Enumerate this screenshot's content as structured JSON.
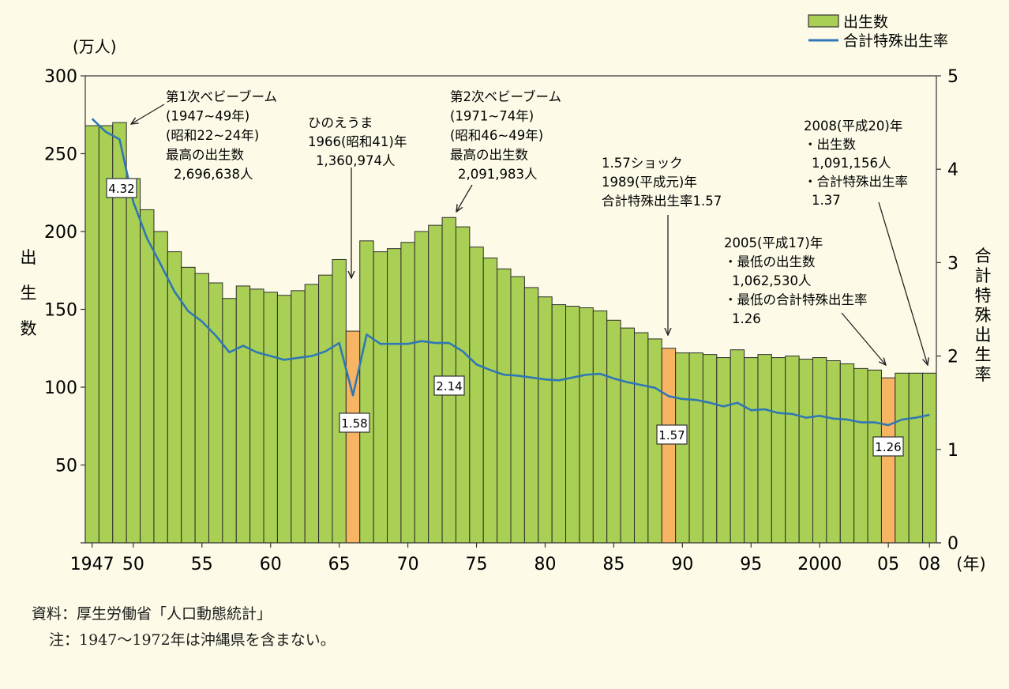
{
  "chart_data": {
    "type": "bar",
    "title": "",
    "xlabel": "(年)",
    "ylabel_left": [
      "出",
      "生",
      "数"
    ],
    "ylabel_left_unit": "(万人)",
    "ylabel_right": [
      "合",
      "計",
      "特",
      "殊",
      "出",
      "生",
      "率"
    ],
    "ylim_left": [
      0,
      300
    ],
    "ylim_right": [
      0,
      5
    ],
    "yticks_left": [
      50,
      100,
      150,
      200,
      250,
      300
    ],
    "yticks_right": [
      0,
      1,
      2,
      3,
      4,
      5
    ],
    "xtick_labels": [
      {
        "year": 1947,
        "label": "1947"
      },
      {
        "year": 1950,
        "label": "50"
      },
      {
        "year": 1955,
        "label": "55"
      },
      {
        "year": 1960,
        "label": "60"
      },
      {
        "year": 1965,
        "label": "65"
      },
      {
        "year": 1970,
        "label": "70"
      },
      {
        "year": 1975,
        "label": "75"
      },
      {
        "year": 1980,
        "label": "80"
      },
      {
        "year": 1985,
        "label": "85"
      },
      {
        "year": 1990,
        "label": "90"
      },
      {
        "year": 1995,
        "label": "95"
      },
      {
        "year": 2000,
        "label": "2000"
      },
      {
        "year": 2005,
        "label": "05"
      },
      {
        "year": 2008,
        "label": "08"
      }
    ],
    "legend": {
      "position": "top-right",
      "bar_label": "出生数",
      "line_label": "合計特殊出生率"
    },
    "years": [
      1947,
      1948,
      1949,
      1950,
      1951,
      1952,
      1953,
      1954,
      1955,
      1956,
      1957,
      1958,
      1959,
      1960,
      1961,
      1962,
      1963,
      1964,
      1965,
      1966,
      1967,
      1968,
      1969,
      1970,
      1971,
      1972,
      1973,
      1974,
      1975,
      1976,
      1977,
      1978,
      1979,
      1980,
      1981,
      1982,
      1983,
      1984,
      1985,
      1986,
      1987,
      1988,
      1989,
      1990,
      1991,
      1992,
      1993,
      1994,
      1995,
      1996,
      1997,
      1998,
      1999,
      2000,
      2001,
      2002,
      2003,
      2004,
      2005,
      2006,
      2007,
      2008
    ],
    "series": [
      {
        "name": "出生数",
        "axis": "left",
        "values": [
          268,
          268,
          270,
          234,
          214,
          200,
          187,
          177,
          173,
          167,
          157,
          165,
          163,
          161,
          159,
          162,
          166,
          172,
          182,
          136,
          194,
          187,
          189,
          193,
          200,
          204,
          209,
          203,
          190,
          183,
          176,
          171,
          164,
          158,
          153,
          152,
          151,
          149,
          143,
          138,
          135,
          131,
          125,
          122,
          122,
          121,
          119,
          124,
          119,
          121,
          119,
          120,
          118,
          119,
          117,
          115,
          112,
          111,
          106,
          109,
          109,
          109
        ]
      },
      {
        "name": "合計特殊出生率",
        "axis": "right",
        "values": [
          4.54,
          4.4,
          4.32,
          3.65,
          3.26,
          2.98,
          2.69,
          2.48,
          2.37,
          2.22,
          2.04,
          2.11,
          2.04,
          2.0,
          1.96,
          1.98,
          2.0,
          2.05,
          2.14,
          1.58,
          2.23,
          2.13,
          2.13,
          2.13,
          2.16,
          2.14,
          2.14,
          2.05,
          1.91,
          1.85,
          1.8,
          1.79,
          1.77,
          1.75,
          1.74,
          1.77,
          1.8,
          1.81,
          1.76,
          1.72,
          1.69,
          1.66,
          1.57,
          1.54,
          1.53,
          1.5,
          1.46,
          1.5,
          1.42,
          1.43,
          1.39,
          1.38,
          1.34,
          1.36,
          1.33,
          1.32,
          1.29,
          1.29,
          1.26,
          1.32,
          1.34,
          1.37
        ]
      }
    ],
    "highlight_years": [
      1966,
      1989,
      2005
    ],
    "value_labels": [
      {
        "year": 1949,
        "text": "4.32"
      },
      {
        "year": 1966,
        "text": "1.58"
      },
      {
        "year": 1973,
        "text": "2.14"
      },
      {
        "year": 1989,
        "text": "1.57"
      },
      {
        "year": 2005,
        "text": "1.26"
      }
    ],
    "annotations": [
      {
        "id": "baby-boom-1",
        "lines": [
          "第1次ベビーブーム",
          "(1947~49年)",
          "(昭和22~24年)",
          "最高の出生数",
          "2,696,638人"
        ]
      },
      {
        "id": "hinoeuma",
        "lines": [
          "ひのえうま",
          "1966(昭和41)年",
          "1,360,974人"
        ]
      },
      {
        "id": "baby-boom-2",
        "lines": [
          "第2次ベビーブーム",
          "(1971~74年)",
          "(昭和46~49年)",
          "最高の出生数",
          "2,091,983人"
        ]
      },
      {
        "id": "shock-157",
        "lines": [
          "1.57ショック",
          "1989(平成元)年",
          "合計特殊出生率1.57"
        ]
      },
      {
        "id": "y2008",
        "lines": [
          "2008(平成20)年",
          "・出生数",
          "1,091,156人",
          "・合計特殊出生率",
          "1.37"
        ]
      },
      {
        "id": "y2005",
        "lines": [
          "2005(平成17)年",
          "・最低の出生数",
          "1,062,530人",
          "・最低の合計特殊出生率",
          "1.26"
        ]
      }
    ],
    "colors": {
      "bar": "#a9cf54",
      "bar_edge": "#2d2d2d",
      "highlight_bar": "#f7b462",
      "line": "#2f77b5",
      "background": "#fdfbe7"
    }
  },
  "source": {
    "line1": "資料：厚生労働省「人口動態統計」",
    "line2": "注：1947～1972年は沖縄県を含まない。"
  }
}
